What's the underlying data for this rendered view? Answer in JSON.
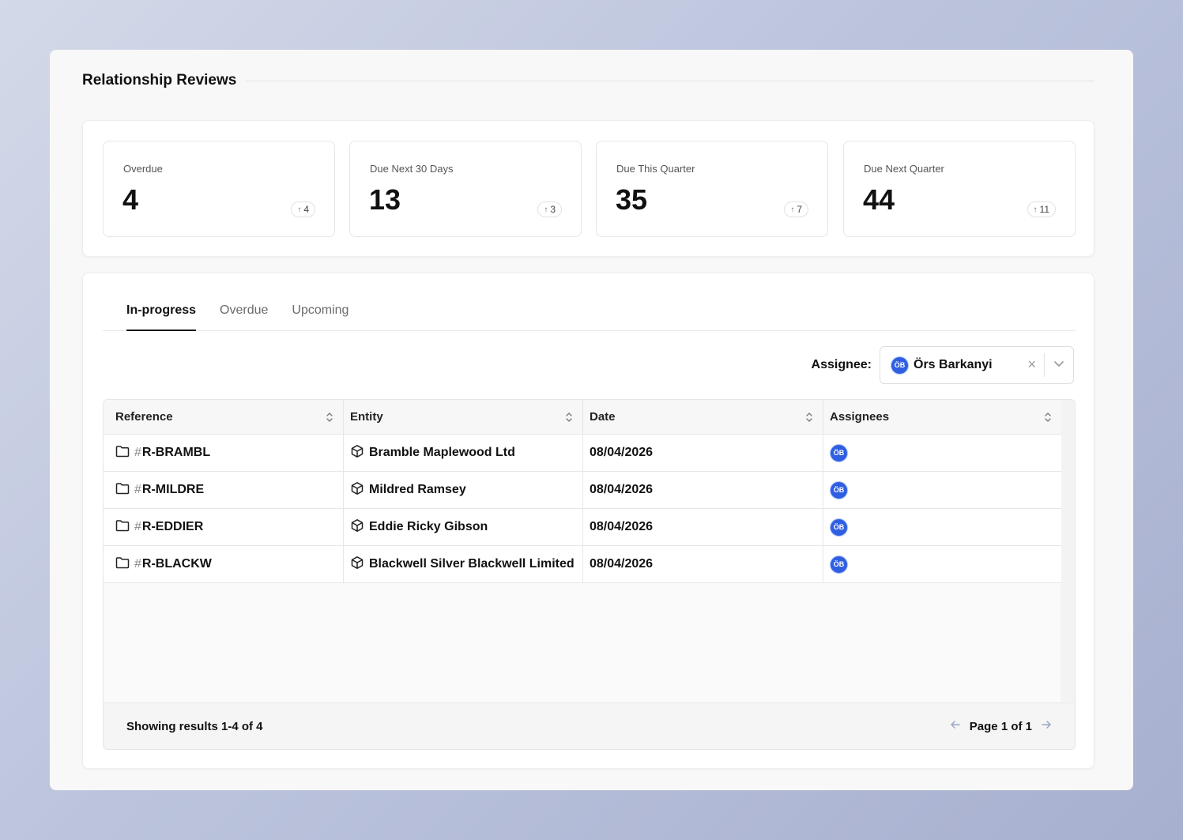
{
  "page": {
    "title": "Relationship Reviews"
  },
  "stats": [
    {
      "label": "Overdue",
      "value": "4",
      "delta": "4"
    },
    {
      "label": "Due Next 30 Days",
      "value": "13",
      "delta": "3"
    },
    {
      "label": "Due This Quarter",
      "value": "35",
      "delta": "7"
    },
    {
      "label": "Due Next Quarter",
      "value": "44",
      "delta": "11"
    }
  ],
  "tabs": [
    {
      "label": "In-progress",
      "active": true
    },
    {
      "label": "Overdue",
      "active": false
    },
    {
      "label": "Upcoming",
      "active": false
    }
  ],
  "filter": {
    "label": "Assignee:",
    "initials": "ÖB",
    "value": "Örs Barkanyi",
    "clear": "×"
  },
  "table": {
    "columns": [
      "Reference",
      "Entity",
      "Date",
      "Assignees"
    ],
    "rows": [
      {
        "ref": "R-BRAMBL",
        "entity": "Bramble Maplewood Ltd",
        "date": "08/04/2026",
        "assignee": "ÖB"
      },
      {
        "ref": "R-MILDRE",
        "entity": "Mildred Ramsey",
        "date": "08/04/2026",
        "assignee": "ÖB"
      },
      {
        "ref": "R-EDDIER",
        "entity": "Eddie Ricky Gibson",
        "date": "08/04/2026",
        "assignee": "ÖB"
      },
      {
        "ref": "R-BLACKW",
        "entity": "Blackwell Silver Blackwell Limited",
        "date": "08/04/2026",
        "assignee": "ÖB"
      }
    ],
    "hash": "#"
  },
  "footer": {
    "results": "Showing results 1-4 of 4",
    "page": "Page 1 of 1"
  },
  "colors": {
    "accent": "#2f5fe0",
    "text": "#111111",
    "muted": "#6b6b6b"
  }
}
